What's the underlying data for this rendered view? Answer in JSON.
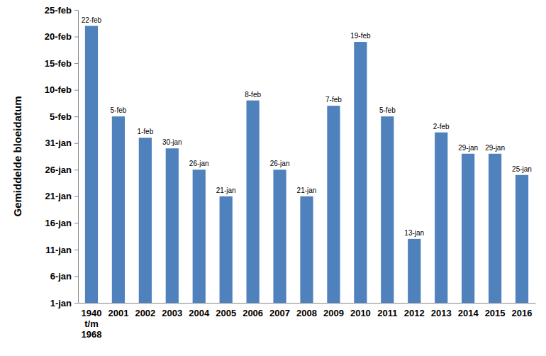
{
  "chart_data": {
    "type": "bar",
    "y_label": "Gemiddelde bloeidatum",
    "categories": [
      "1940 t/m 1968",
      "2001",
      "2002",
      "2003",
      "2004",
      "2005",
      "2006",
      "2007",
      "2008",
      "2009",
      "2010",
      "2011",
      "2012",
      "2013",
      "2014",
      "2015",
      "2016"
    ],
    "values": [
      53,
      36,
      32,
      30,
      26,
      21,
      39,
      26,
      21,
      38,
      50,
      36,
      13,
      33,
      29,
      29,
      25
    ],
    "value_labels": [
      "22-feb",
      "5-feb",
      "1-feb",
      "30-jan",
      "26-jan",
      "21-jan",
      "8-feb",
      "26-jan",
      "21-jan",
      "7-feb",
      "19-feb",
      "5-feb",
      "13-jan",
      "2-feb",
      "29-jan",
      "29-jan",
      "25-jan"
    ],
    "color": "#4f81bd",
    "ylim": [
      1,
      56
    ],
    "yticks": [
      {
        "value": 1,
        "label": "1-jan"
      },
      {
        "value": 6,
        "label": "6-jan"
      },
      {
        "value": 11,
        "label": "11-jan"
      },
      {
        "value": 16,
        "label": "16-jan"
      },
      {
        "value": 21,
        "label": "21-jan"
      },
      {
        "value": 26,
        "label": "26-jan"
      },
      {
        "value": 31,
        "label": "31-jan"
      },
      {
        "value": 36,
        "label": "5-feb"
      },
      {
        "value": 41,
        "label": "10-feb"
      },
      {
        "value": 46,
        "label": "15-feb"
      },
      {
        "value": 51,
        "label": "20-feb"
      },
      {
        "value": 56,
        "label": "25-feb"
      }
    ],
    "grid": false,
    "data_labels": true
  }
}
